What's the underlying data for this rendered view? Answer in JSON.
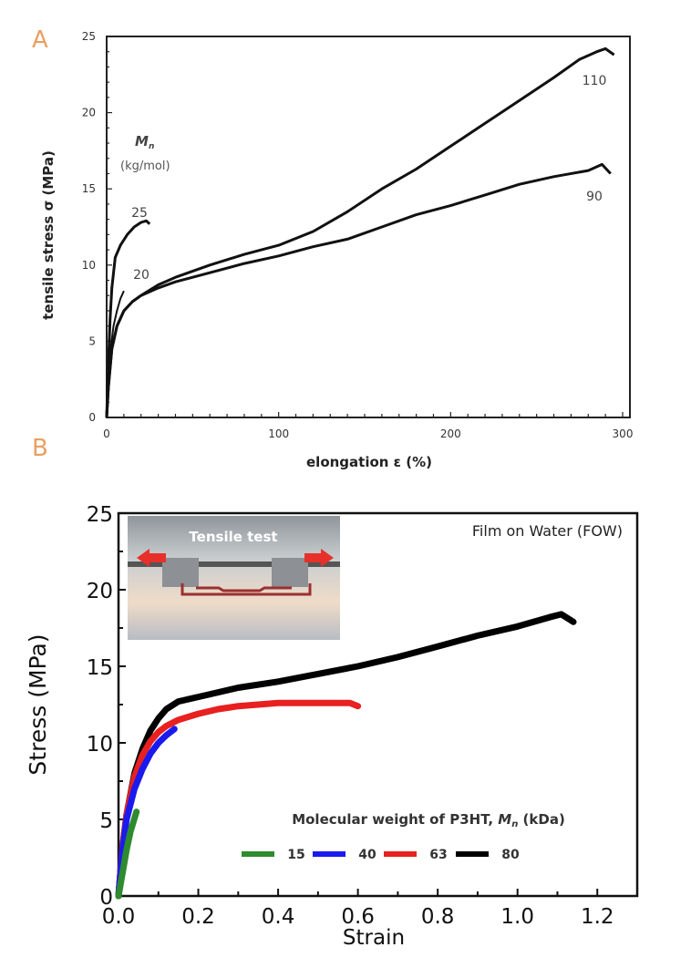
{
  "chart_data": [
    {
      "panel_label": "A",
      "type": "line",
      "xlabel": "elongation ε (%)",
      "ylabel": "tensile stress  σ (MPa)",
      "xlim": [
        0,
        300
      ],
      "ylim": [
        0,
        25
      ],
      "xticks": [
        0,
        100,
        200,
        300
      ],
      "yticks": [
        0,
        5,
        10,
        15,
        20,
        25
      ],
      "grid": false,
      "legend_title": "Mn",
      "legend_unit": "(kg/mol)",
      "line_color": "#111111",
      "series": [
        {
          "name": "20",
          "x": [
            0,
            1,
            2,
            4,
            6,
            8,
            10
          ],
          "y": [
            0,
            2.5,
            4.2,
            6.0,
            7.0,
            7.8,
            8.3
          ]
        },
        {
          "name": "25",
          "x": [
            0,
            1,
            2,
            3,
            5,
            8,
            12,
            16,
            20,
            23,
            25
          ],
          "y": [
            0,
            3.5,
            6.5,
            8.5,
            10.5,
            11.3,
            12.0,
            12.5,
            12.8,
            12.9,
            12.7
          ]
        },
        {
          "name": "90",
          "x": [
            0,
            1,
            3,
            6,
            10,
            15,
            20,
            30,
            40,
            60,
            80,
            100,
            120,
            140,
            160,
            180,
            200,
            220,
            240,
            260,
            280,
            288,
            293
          ],
          "y": [
            0,
            2.0,
            4.5,
            6.0,
            7.0,
            7.6,
            8.0,
            8.5,
            8.9,
            9.5,
            10.1,
            10.6,
            11.2,
            11.7,
            12.5,
            13.3,
            13.9,
            14.6,
            15.3,
            15.8,
            16.2,
            16.6,
            16.0
          ]
        },
        {
          "name": "110",
          "x": [
            0,
            1,
            3,
            6,
            10,
            15,
            20,
            30,
            40,
            60,
            80,
            100,
            120,
            140,
            160,
            180,
            200,
            220,
            240,
            260,
            275,
            285,
            290,
            295
          ],
          "y": [
            0,
            2.0,
            4.5,
            6.0,
            7.0,
            7.6,
            8.0,
            8.7,
            9.2,
            10.0,
            10.7,
            11.3,
            12.2,
            13.5,
            15.0,
            16.3,
            17.8,
            19.3,
            20.8,
            22.3,
            23.5,
            24.0,
            24.2,
            23.8
          ]
        }
      ]
    },
    {
      "panel_label": "B",
      "type": "line",
      "xlabel": "Strain",
      "ylabel": "Stress (MPa)",
      "xlim": [
        0,
        1.3
      ],
      "ylim": [
        0,
        25
      ],
      "xticks": [
        "0.0",
        "0.2",
        "0.4",
        "0.6",
        "0.8",
        "1.0",
        "1.2"
      ],
      "yticks": [
        "0",
        "5",
        "10",
        "15",
        "20",
        "25"
      ],
      "grid": false,
      "annotation": "Film on Water (FOW)",
      "inset_label": "Tensile test",
      "legend_title": "Molecular weight of P3HT, Mn (kDa)",
      "legend_placement": "bottom-right",
      "series": [
        {
          "name": "15",
          "color": "#2e8b2e",
          "x": [
            0,
            0.01,
            0.02,
            0.03,
            0.045
          ],
          "y": [
            0,
            1.5,
            3.0,
            4.2,
            5.5
          ]
        },
        {
          "name": "40",
          "color": "#1a1aee",
          "x": [
            0,
            0.01,
            0.02,
            0.04,
            0.06,
            0.08,
            0.1,
            0.12,
            0.14
          ],
          "y": [
            0,
            3.0,
            5.0,
            7.0,
            8.3,
            9.3,
            10.0,
            10.5,
            10.9
          ]
        },
        {
          "name": "63",
          "color": "#e82020",
          "x": [
            0,
            0.01,
            0.02,
            0.04,
            0.06,
            0.08,
            0.1,
            0.12,
            0.15,
            0.2,
            0.25,
            0.3,
            0.4,
            0.5,
            0.58,
            0.6
          ],
          "y": [
            0,
            3.2,
            5.3,
            7.8,
            9.2,
            10.1,
            10.7,
            11.1,
            11.5,
            11.9,
            12.2,
            12.4,
            12.6,
            12.6,
            12.6,
            12.4
          ]
        },
        {
          "name": "80",
          "color": "#000000",
          "x": [
            0,
            0.01,
            0.02,
            0.04,
            0.06,
            0.08,
            0.1,
            0.12,
            0.15,
            0.2,
            0.3,
            0.4,
            0.5,
            0.6,
            0.7,
            0.8,
            0.9,
            1.0,
            1.08,
            1.11,
            1.14
          ],
          "y": [
            0,
            3.2,
            5.3,
            8.0,
            9.6,
            10.8,
            11.6,
            12.2,
            12.7,
            13.0,
            13.6,
            14.0,
            14.5,
            15.0,
            15.6,
            16.3,
            17.0,
            17.6,
            18.2,
            18.4,
            17.9
          ]
        }
      ]
    }
  ]
}
